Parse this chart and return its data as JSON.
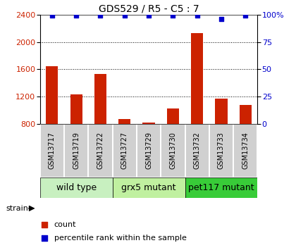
{
  "title": "GDS529 / R5 - C5 : 7",
  "samples": [
    "GSM13717",
    "GSM13719",
    "GSM13722",
    "GSM13727",
    "GSM13729",
    "GSM13730",
    "GSM13732",
    "GSM13733",
    "GSM13734"
  ],
  "counts": [
    1640,
    1230,
    1530,
    870,
    820,
    1030,
    2130,
    1170,
    1080
  ],
  "percentiles": [
    99,
    99,
    99,
    99,
    99,
    99,
    99,
    96,
    99
  ],
  "groups": [
    {
      "label": "wild type",
      "start": 0,
      "end": 3,
      "color": "#c8f0c0"
    },
    {
      "label": "grx5 mutant",
      "start": 3,
      "end": 6,
      "color": "#c0f0a0"
    },
    {
      "label": "pet117 mutant",
      "start": 6,
      "end": 9,
      "color": "#38cc38"
    }
  ],
  "ylim_left": [
    800,
    2400
  ],
  "ylim_right": [
    0,
    100
  ],
  "yticks_left": [
    800,
    1200,
    1600,
    2000,
    2400
  ],
  "yticks_right": [
    0,
    25,
    50,
    75,
    100
  ],
  "bar_color": "#cc2200",
  "dot_color": "#0000cc",
  "bar_width": 0.5,
  "title_fontsize": 10,
  "tick_fontsize": 8,
  "sample_label_fontsize": 7,
  "group_label_fontsize": 9,
  "legend_fontsize": 8,
  "strain_fontsize": 8,
  "grid_lines": [
    1200,
    1600,
    2000
  ],
  "sample_box_color": "#d0d0d0",
  "pct_100_label": "100%"
}
